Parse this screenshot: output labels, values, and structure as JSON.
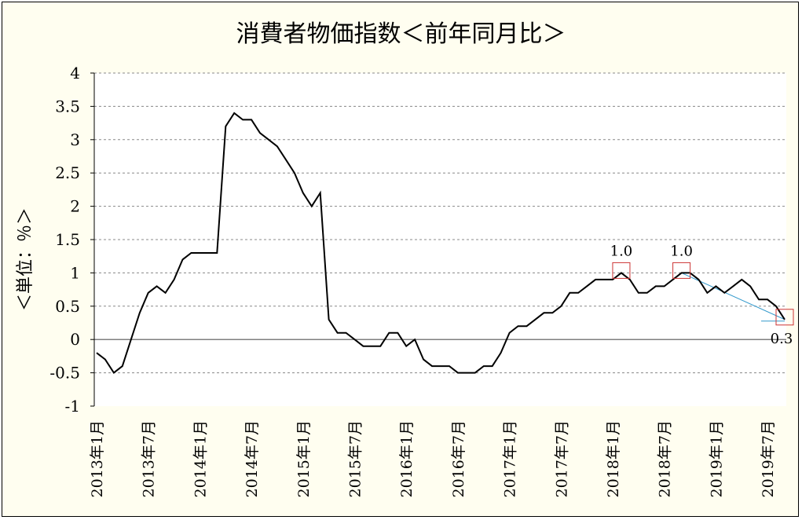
{
  "chart_data": {
    "type": "line",
    "title": "消費者物価指数＜前年同月比＞",
    "ylabel": "＜単位：％＞",
    "xlabel": "",
    "ylim": [
      -1,
      4
    ],
    "yticks": [
      "4",
      "3.5",
      "3",
      "2.5",
      "2",
      "1.5",
      "1",
      "0.5",
      "0",
      "-0.5",
      "-1"
    ],
    "ytick_values": [
      4,
      3.5,
      3,
      2.5,
      2,
      1.5,
      1,
      0.5,
      0,
      -0.5,
      -1
    ],
    "xtick_labels": [
      "2013年1月",
      "2013年7月",
      "2014年1月",
      "2014年7月",
      "2015年1月",
      "2015年7月",
      "2016年1月",
      "2016年7月",
      "2017年1月",
      "2017年7月",
      "2018年1月",
      "2018年7月",
      "2019年1月",
      "2019年7月"
    ],
    "grid": true,
    "series": [
      {
        "values": [
          -0.2,
          -0.3,
          -0.5,
          -0.4,
          0.0,
          0.4,
          0.7,
          0.8,
          0.7,
          0.9,
          1.2,
          1.3,
          1.3,
          1.3,
          1.3,
          3.2,
          3.4,
          3.3,
          3.3,
          3.1,
          3.0,
          2.9,
          2.7,
          2.5,
          2.2,
          2.0,
          2.2,
          0.3,
          0.1,
          0.1,
          0.0,
          -0.1,
          -0.1,
          -0.1,
          0.1,
          0.1,
          -0.1,
          0.0,
          -0.3,
          -0.4,
          -0.4,
          -0.4,
          -0.5,
          -0.5,
          -0.5,
          -0.4,
          -0.4,
          -0.2,
          0.1,
          0.2,
          0.2,
          0.3,
          0.4,
          0.4,
          0.5,
          0.7,
          0.7,
          0.8,
          0.9,
          0.9,
          0.9,
          1.0,
          0.9,
          0.7,
          0.7,
          0.8,
          0.8,
          0.9,
          1.0,
          1.0,
          0.9,
          0.7,
          0.8,
          0.7,
          0.8,
          0.9,
          0.8,
          0.6,
          0.6,
          0.5,
          0.3
        ],
        "color": "#000000"
      }
    ],
    "annotations": [
      {
        "label": "1.0",
        "index": 61,
        "value": 1.0
      },
      {
        "label": "1.0",
        "index": 68,
        "value": 1.0
      },
      {
        "label": "0.3",
        "index": 80,
        "value": 0.3
      }
    ],
    "trendline": {
      "from_index": 68,
      "from_value": 1.0,
      "to_index": 80,
      "to_value": 0.3,
      "color": "#3399cc"
    },
    "colors": {
      "plot_bg": "#ffffff",
      "frame_bg": "#fffef0",
      "highlight_box": "#cc3333",
      "trend": "#3399cc"
    }
  }
}
